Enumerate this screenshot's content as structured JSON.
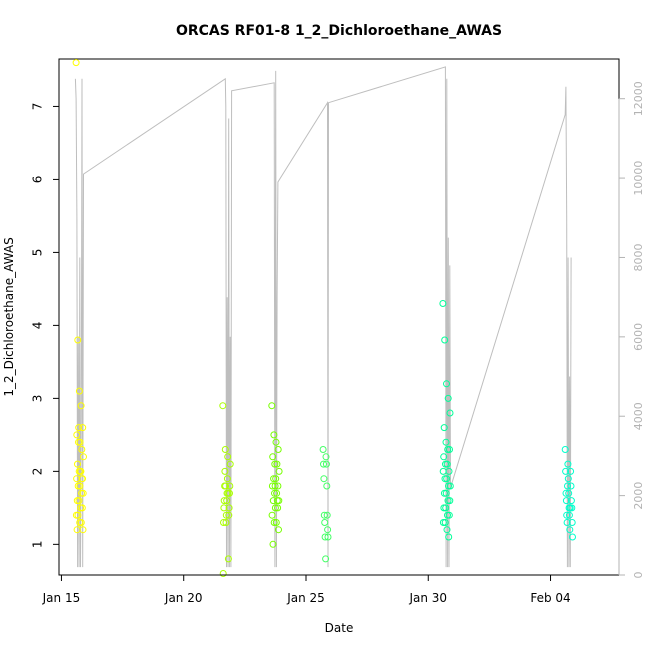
{
  "chart_data": {
    "type": "scatter",
    "title": "ORCAS RF01-8 1_2_Dichloroethane_AWAS",
    "xlabel": "Date",
    "ylabel": "1_2_Dichloroethane_AWAS",
    "x_tick_labels": [
      "Jan 15",
      "Jan 20",
      "Jan 25",
      "Jan 30",
      "Feb 04"
    ],
    "x_tick_values": [
      15,
      20,
      25,
      30,
      35
    ],
    "xlim": [
      14.9,
      37.8
    ],
    "y_ticks": [
      1,
      2,
      3,
      4,
      5,
      6,
      7
    ],
    "ylim": [
      0.58,
      7.65
    ],
    "y2_ticks": [
      0,
      2000,
      4000,
      6000,
      8000,
      10000,
      12000
    ],
    "y2lim": [
      0,
      13000
    ],
    "grid": false,
    "legend": "none",
    "colors": {
      "altitude_line": "#bebebe",
      "flight_1": "#ffff00",
      "flight_2": "#aaff00",
      "flight_3": "#77ff00",
      "flight_4": "#44ff66",
      "flight_5": "#00ff99",
      "flight_6": "#00ffcc",
      "axis": "#000000",
      "y2_axis": "#b3b3b3"
    },
    "flights": [
      {
        "color_key": "flight_1",
        "x_range": [
          15.6,
          15.9
        ],
        "values": [
          7.6,
          3.8,
          3.1,
          2.9,
          2.6,
          2.5,
          2.4,
          2.4,
          2.3,
          2.2,
          2.1,
          2.0,
          2.0,
          1.9,
          1.9,
          1.8,
          1.8,
          1.7,
          1.7,
          1.6,
          1.6,
          1.5,
          1.5,
          1.4,
          1.4,
          1.3,
          1.3,
          1.2,
          1.2,
          2.6,
          2.0,
          1.9
        ]
      },
      {
        "color_key": "flight_2",
        "x_range": [
          21.6,
          21.9
        ],
        "values": [
          2.9,
          2.3,
          2.2,
          2.1,
          2.0,
          1.9,
          1.8,
          1.8,
          1.7,
          1.7,
          1.6,
          1.6,
          1.5,
          1.5,
          1.4,
          1.4,
          1.3,
          1.3,
          0.8,
          0.6,
          1.8,
          1.7
        ]
      },
      {
        "color_key": "flight_3",
        "x_range": [
          23.6,
          23.9
        ],
        "values": [
          2.9,
          2.5,
          2.4,
          2.3,
          2.2,
          2.1,
          2.1,
          2.0,
          1.9,
          1.9,
          1.8,
          1.8,
          1.7,
          1.7,
          1.6,
          1.6,
          1.5,
          1.5,
          1.4,
          1.3,
          1.3,
          1.2,
          1.0,
          1.8,
          1.6
        ]
      },
      {
        "color_key": "flight_4",
        "x_range": [
          25.7,
          25.9
        ],
        "values": [
          2.3,
          2.2,
          2.1,
          2.1,
          1.9,
          1.8,
          1.4,
          1.4,
          1.3,
          1.2,
          1.1,
          1.1,
          0.8
        ]
      },
      {
        "color_key": "flight_5",
        "x_range": [
          30.6,
          30.9
        ],
        "values": [
          4.3,
          3.8,
          3.2,
          3.0,
          2.8,
          2.6,
          2.4,
          2.3,
          2.3,
          2.2,
          2.1,
          2.1,
          2.0,
          2.0,
          1.9,
          1.9,
          1.8,
          1.8,
          1.7,
          1.7,
          1.6,
          1.6,
          1.5,
          1.5,
          1.4,
          1.4,
          1.3,
          1.3,
          1.2,
          1.1
        ]
      },
      {
        "color_key": "flight_6",
        "x_range": [
          35.6,
          35.9
        ],
        "values": [
          2.3,
          2.1,
          2.0,
          2.0,
          1.9,
          1.8,
          1.7,
          1.7,
          1.6,
          1.6,
          1.5,
          1.5,
          1.4,
          1.4,
          1.3,
          1.3,
          1.2,
          1.1,
          1.8,
          1.5
        ]
      }
    ],
    "altitude_series": {
      "x": [
        15.57,
        15.6,
        15.63,
        15.66,
        15.69,
        15.72,
        15.75,
        15.78,
        15.81,
        15.84,
        15.87,
        15.9,
        21.7,
        21.72,
        21.75,
        21.78,
        21.81,
        21.84,
        21.87,
        21.9,
        21.93,
        21.96,
        23.7,
        23.73,
        23.76,
        23.79,
        23.82,
        23.85,
        25.88,
        25.9,
        25.92,
        30.7,
        30.73,
        30.76,
        30.79,
        30.82,
        30.85,
        30.88,
        30.91,
        35.6,
        35.63,
        35.66,
        35.69,
        35.72,
        35.75,
        35.78,
        35.81,
        35.84
      ],
      "values": [
        12500,
        12000,
        9000,
        200,
        6000,
        200,
        8000,
        200,
        4000,
        12500,
        200,
        10100,
        12500,
        11800,
        200,
        7000,
        200,
        11500,
        200,
        6000,
        200,
        12200,
        12400,
        200,
        12700,
        200,
        7000,
        9900,
        11900,
        200,
        11900,
        12800,
        200,
        12500,
        200,
        8500,
        200,
        7800,
        2200,
        11600,
        12300,
        9000,
        200,
        8000,
        200,
        5000,
        200,
        8000
      ]
    }
  }
}
